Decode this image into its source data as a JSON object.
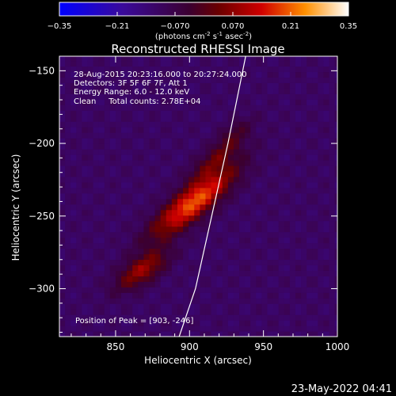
{
  "chart_data": {
    "type": "heatmap",
    "title": "Reconstructed RHESSI Image",
    "xlabel": "Heliocentric X (arcsec)",
    "ylabel": "Heliocentric Y (arcsec)",
    "xlim": [
      812,
      1000
    ],
    "ylim": [
      -333,
      -140
    ],
    "x_ticks": [
      850,
      900,
      950,
      1000
    ],
    "y_ticks": [
      -150,
      -200,
      -250,
      -300
    ],
    "colorbar": {
      "ticks": [
        "-0.35",
        "-0.21",
        "-0.070",
        "0.070",
        "0.21",
        "0.35"
      ],
      "range": [
        -0.35,
        0.35
      ],
      "units": "(photons cm",
      "units_sup1": "-2",
      "units_mid1": " s",
      "units_sup2": "-1",
      "units_mid2": " asec",
      "units_sup3": "-2",
      "units_end": ")"
    },
    "annotations": [
      "28-Aug-2015 20:23:16.000 to 20:27:24.000",
      "Detectors: 3F 5F 6F 7F, Att 1",
      "Energy Range: 6.0 - 12.0 keV",
      "Clean     Total counts: 2.78E+04"
    ],
    "peak_label": "Position of Peak = [903, -246]",
    "peak": {
      "x": 903,
      "y": -246,
      "value": 0.35
    },
    "sources": [
      {
        "x": 903,
        "y": -240,
        "sx": 24,
        "sy": 7,
        "angle_deg": 40,
        "amp": 0.32
      },
      {
        "x": 868,
        "y": -287,
        "sx": 14,
        "sy": 6,
        "angle_deg": 35,
        "amp": 0.19
      },
      {
        "x": 918,
        "y": -210,
        "sx": 16,
        "sy": 5,
        "angle_deg": 40,
        "amp": 0.12
      },
      {
        "x": 930,
        "y": -192,
        "sx": 10,
        "sy": 4,
        "angle_deg": 40,
        "amp": 0.07
      }
    ],
    "background_level": -0.11,
    "limb_curve": [
      [
        893,
        -333
      ],
      [
        904,
        -300
      ],
      [
        915,
        -250
      ],
      [
        926,
        -200
      ],
      [
        936,
        -150
      ],
      [
        938,
        -140
      ]
    ],
    "timestamp": "23-May-2022 04:41"
  }
}
